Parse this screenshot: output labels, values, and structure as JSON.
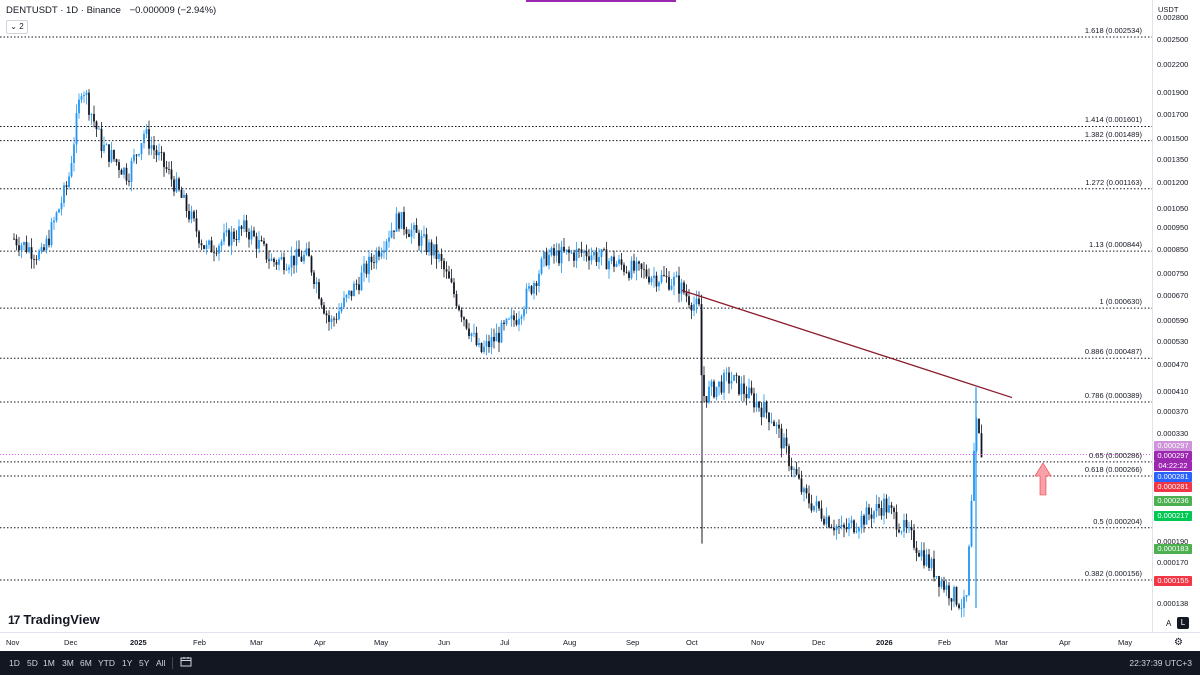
{
  "header": {
    "symbol": "DENTUSDT · 1D · Binance",
    "change": "−0.000009 (−2.94%)",
    "indicator_count": "2"
  },
  "price_axis": {
    "currency": "USDT",
    "ticks": [
      "0.002800",
      "0.002500",
      "0.002200",
      "0.001900",
      "0.001700",
      "0.001500",
      "0.001350",
      "0.001200",
      "0.001050",
      "0.000950",
      "0.000850",
      "0.000750",
      "0.000670",
      "0.000590",
      "0.000530",
      "0.000470",
      "0.000410",
      "0.000370",
      "0.000330",
      "0.000190",
      "0.000170",
      "0.000138"
    ],
    "badges": [
      {
        "text": "0.000297",
        "color": "#ce93d8"
      },
      {
        "text": "0.000297",
        "color": "#9c27b0"
      },
      {
        "text": "04:22:22",
        "color": "#9c27b0"
      },
      {
        "text": "0.000281",
        "color": "#2962ff"
      },
      {
        "text": "0.000281",
        "color": "#f23645"
      },
      {
        "text": "0.000236",
        "color": "#4caf50"
      },
      {
        "text": "0.000217",
        "color": "#00c853"
      },
      {
        "text": "0.000183",
        "color": "#4caf50"
      },
      {
        "text": "0.000155",
        "color": "#f23645"
      }
    ]
  },
  "fib_levels": [
    {
      "label": "1.618 (0.002534)",
      "price": 0.002534
    },
    {
      "label": "1.414 (0.001601)",
      "price": 0.001601
    },
    {
      "label": "1.382 (0.001489)",
      "price": 0.001489
    },
    {
      "label": "1.272 (0.001163)",
      "price": 0.001163
    },
    {
      "label": "1.13 (0.000844)",
      "price": 0.000844
    },
    {
      "label": "1 (0.000630)",
      "price": 0.00063
    },
    {
      "label": "0.886 (0.000487)",
      "price": 0.000487
    },
    {
      "label": "0.786 (0.000389)",
      "price": 0.000389
    },
    {
      "label": "0.65 (0.000286)",
      "price": 0.000286
    },
    {
      "label": "0.618 (0.000266)",
      "price": 0.000266
    },
    {
      "label": "0.5 (0.000204)",
      "price": 0.000204
    },
    {
      "label": "0.382 (0.000156)",
      "price": 0.000156
    }
  ],
  "time_axis": [
    "Nov",
    "Dec",
    "2025",
    "Feb",
    "Mar",
    "Apr",
    "May",
    "Jun",
    "Jul",
    "Aug",
    "Sep",
    "Oct",
    "Nov",
    "Dec",
    "2026",
    "Feb",
    "Mar",
    "Apr",
    "May"
  ],
  "bottom_bar": {
    "ranges": [
      "1D",
      "5D",
      "1M",
      "3M",
      "6M",
      "YTD",
      "1Y",
      "5Y",
      "All"
    ],
    "clock": "22:37:39 UTC+3"
  },
  "branding": {
    "logo_text": "TradingView",
    "logo_mark": "17"
  },
  "axis_controls": {
    "auto": "A",
    "log": "L"
  },
  "colors": {
    "up": "#2196f3",
    "down": "#131722",
    "trendline": "#8b1a2b",
    "arrow": "#f7a1a8",
    "current_price_line": "#e040fb"
  },
  "chart_data": {
    "type": "candlestick",
    "scale": "log",
    "symbol": "DENTUSDT",
    "interval": "1D",
    "close_approx": [
      {
        "date": "2024-11-01",
        "close": 0.0009
      },
      {
        "date": "2024-11-15",
        "close": 0.00082
      },
      {
        "date": "2024-11-28",
        "close": 0.0012
      },
      {
        "date": "2024-12-05",
        "close": 0.002
      },
      {
        "date": "2024-12-15",
        "close": 0.00145
      },
      {
        "date": "2024-12-28",
        "close": 0.00125
      },
      {
        "date": "2025-01-05",
        "close": 0.00155
      },
      {
        "date": "2025-01-20",
        "close": 0.0012
      },
      {
        "date": "2025-02-05",
        "close": 0.00085
      },
      {
        "date": "2025-02-25",
        "close": 0.00095
      },
      {
        "date": "2025-03-10",
        "close": 0.0008
      },
      {
        "date": "2025-03-28",
        "close": 0.00082
      },
      {
        "date": "2025-04-08",
        "close": 0.00058
      },
      {
        "date": "2025-04-22",
        "close": 0.00072
      },
      {
        "date": "2025-05-12",
        "close": 0.001
      },
      {
        "date": "2025-06-01",
        "close": 0.00082
      },
      {
        "date": "2025-06-22",
        "close": 0.0005
      },
      {
        "date": "2025-07-10",
        "close": 0.0006
      },
      {
        "date": "2025-07-25",
        "close": 0.00082
      },
      {
        "date": "2025-08-15",
        "close": 0.00084
      },
      {
        "date": "2025-09-05",
        "close": 0.00077
      },
      {
        "date": "2025-09-28",
        "close": 0.00072
      },
      {
        "date": "2025-10-10",
        "close": 0.00062
      },
      {
        "date": "2025-10-11",
        "close": 0.0004
      },
      {
        "date": "2025-10-25",
        "close": 0.00044
      },
      {
        "date": "2025-11-15",
        "close": 0.00036
      },
      {
        "date": "2025-12-01",
        "close": 0.00024
      },
      {
        "date": "2025-12-20",
        "close": 0.0002
      },
      {
        "date": "2026-01-10",
        "close": 0.00023
      },
      {
        "date": "2026-01-25",
        "close": 0.00019
      },
      {
        "date": "2026-02-10",
        "close": 0.00015
      },
      {
        "date": "2026-02-20",
        "close": 0.000135
      },
      {
        "date": "2026-02-25",
        "close": 0.00035
      },
      {
        "date": "2026-02-28",
        "close": 0.000297
      }
    ],
    "trendline": [
      {
        "date": "2025-10-01",
        "price": 0.00069
      },
      {
        "date": "2026-03-15",
        "price": 0.000398
      }
    ],
    "last_price": 0.000297
  }
}
